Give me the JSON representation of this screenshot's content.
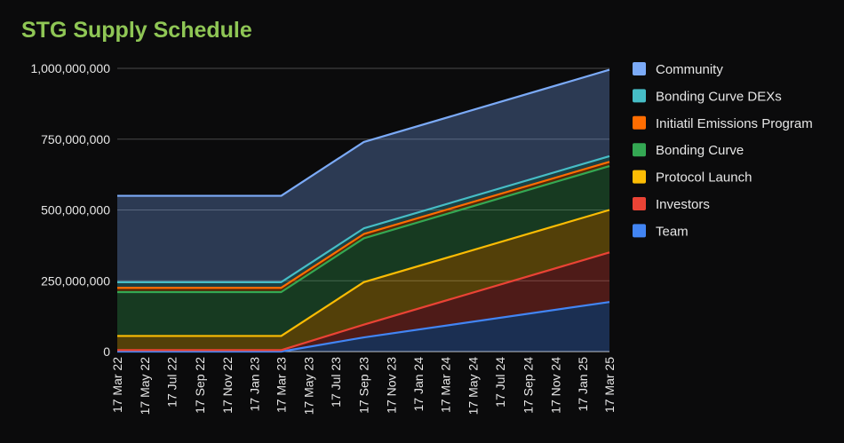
{
  "title": "STG Supply Schedule",
  "chart_data": {
    "type": "area",
    "stacked": true,
    "title": "STG Supply Schedule",
    "xlabel": "",
    "ylabel": "",
    "ylim": [
      0,
      1000000000
    ],
    "yticks": [
      0,
      250000000,
      500000000,
      750000000,
      1000000000
    ],
    "ytick_labels": [
      "0",
      "250,000,000",
      "500,000,000",
      "750,000,000",
      "1,000,000,000"
    ],
    "grid": true,
    "legend_position": "right",
    "x": [
      "17 Mar 22",
      "17 Mar 23",
      "17 Sep 23",
      "17 Mar 25"
    ],
    "x_tick_labels": [
      "17 Mar 22",
      "17 May 22",
      "17 Jul 22",
      "17 Sep 22",
      "17 Nov 22",
      "17 Jan 23",
      "17 Mar 23",
      "17 May 23",
      "17 Jul 23",
      "17 Sep 23",
      "17 Nov 23",
      "17 Jan 24",
      "17 Mar 24",
      "17 May 24",
      "17 Jul 24",
      "17 Sep 24",
      "17 Nov 24",
      "17 Jan 25",
      "17 Mar 25"
    ],
    "series": [
      {
        "name": "Team",
        "color": "#4285f4",
        "values": [
          0,
          0,
          50000000,
          175000000
        ]
      },
      {
        "name": "Investors",
        "color": "#ea4335",
        "values": [
          5000000,
          5000000,
          45000000,
          175000000
        ]
      },
      {
        "name": "Protocol Launch",
        "color": "#fbbc04",
        "values": [
          50000000,
          50000000,
          150000000,
          150000000
        ]
      },
      {
        "name": "Bonding Curve",
        "color": "#34a853",
        "values": [
          155000000,
          155000000,
          155000000,
          155000000
        ]
      },
      {
        "name": "Initiatil Emissions Program",
        "color": "#ff6d01",
        "values": [
          15000000,
          15000000,
          15000000,
          15000000
        ]
      },
      {
        "name": "Bonding Curve DEXs",
        "color": "#46bdc6",
        "values": [
          20000000,
          20000000,
          20000000,
          20000000
        ]
      },
      {
        "name": "Community",
        "color": "#7baaf7",
        "values": [
          305000000,
          305000000,
          305000000,
          305000000
        ]
      }
    ]
  }
}
